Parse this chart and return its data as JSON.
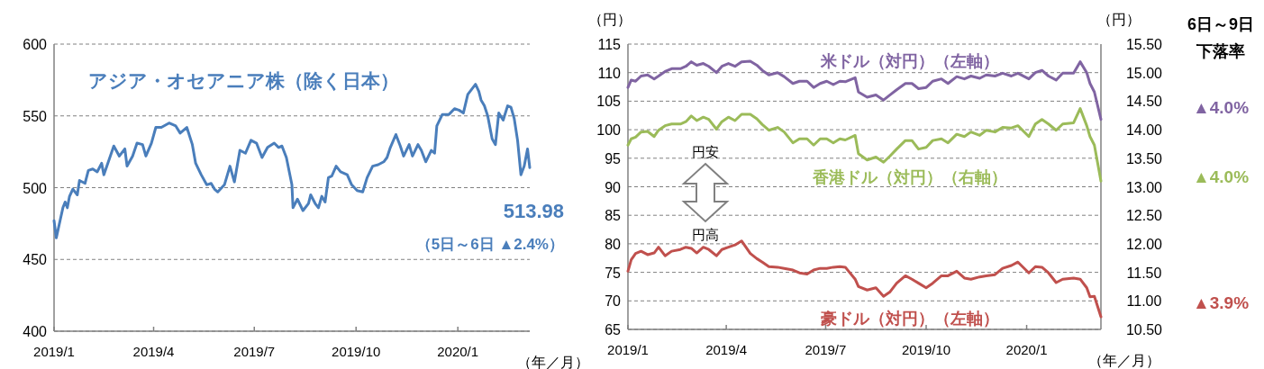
{
  "chart_data": [
    {
      "type": "line",
      "title": "アジア・オセアニア株（除く日本）",
      "xlabel": "（年／月）",
      "x": [
        "2019-01-01",
        "2019-01-03",
        "2019-01-07",
        "2019-01-09",
        "2019-01-11",
        "2019-01-13",
        "2019-01-15",
        "2019-01-18",
        "2019-01-22",
        "2019-01-24",
        "2019-01-29",
        "2019-02-01",
        "2019-02-05",
        "2019-02-09",
        "2019-02-13",
        "2019-02-15",
        "2019-02-20",
        "2019-02-24",
        "2019-03-01",
        "2019-03-06",
        "2019-03-08",
        "2019-03-13",
        "2019-03-17",
        "2019-03-22",
        "2019-03-25",
        "2019-03-30",
        "2019-04-03",
        "2019-04-08",
        "2019-04-15",
        "2019-04-21",
        "2019-04-25",
        "2019-05-01",
        "2019-05-06",
        "2019-05-09",
        "2019-05-14",
        "2019-05-19",
        "2019-05-23",
        "2019-05-26",
        "2019-05-29",
        "2019-06-04",
        "2019-06-09",
        "2019-06-13",
        "2019-06-18",
        "2019-06-23",
        "2019-06-28",
        "2019-07-03",
        "2019-07-08",
        "2019-07-13",
        "2019-07-19",
        "2019-07-23",
        "2019-07-26",
        "2019-07-30",
        "2019-08-04",
        "2019-08-05",
        "2019-08-09",
        "2019-08-14",
        "2019-08-19",
        "2019-08-21",
        "2019-08-25",
        "2019-08-28",
        "2019-08-31",
        "2019-09-03",
        "2019-09-06",
        "2019-09-09",
        "2019-09-13",
        "2019-09-17",
        "2019-09-23",
        "2019-09-27",
        "2019-10-02",
        "2019-10-07",
        "2019-10-11",
        "2019-10-16",
        "2019-10-21",
        "2019-10-26",
        "2019-10-29",
        "2019-11-01",
        "2019-11-06",
        "2019-11-10",
        "2019-11-13",
        "2019-11-18",
        "2019-11-21",
        "2019-11-26",
        "2019-11-29",
        "2019-12-03",
        "2019-12-08",
        "2019-12-11",
        "2019-12-13",
        "2019-12-18",
        "2019-12-24",
        "2019-12-29",
        "2020-01-02",
        "2020-01-06",
        "2020-01-10",
        "2020-01-17",
        "2020-01-20",
        "2020-01-22",
        "2020-01-25",
        "2020-01-28",
        "2020-02-01",
        "2020-02-04",
        "2020-02-07",
        "2020-02-11",
        "2020-02-15",
        "2020-02-18",
        "2020-02-21",
        "2020-02-24",
        "2020-02-27",
        "2020-03-01",
        "2020-03-04",
        "2020-03-06"
      ],
      "series": [
        {
          "color": "#4a7ebb",
          "values": [
            477,
            465,
            479,
            486,
            490,
            486,
            494,
            499,
            495,
            505,
            503,
            512,
            513,
            511,
            517,
            509,
            520,
            529,
            522,
            527,
            515,
            522,
            531,
            530,
            522,
            531,
            542,
            542,
            545,
            543,
            538,
            542,
            530,
            517,
            509,
            502,
            503,
            499,
            497,
            502,
            515,
            504,
            526,
            524,
            533,
            531,
            521,
            528,
            531,
            528,
            529,
            521,
            502,
            486,
            492,
            484,
            489,
            495,
            489,
            486,
            494,
            490,
            507,
            508,
            515,
            511,
            509,
            502,
            498,
            497,
            507,
            515,
            516,
            518,
            521,
            528,
            537,
            529,
            522,
            530,
            522,
            530,
            526,
            518,
            526,
            524,
            543,
            551,
            551,
            555,
            554,
            552,
            565,
            572,
            567,
            561,
            557,
            550,
            534,
            530,
            552,
            547,
            557,
            556,
            548,
            533,
            509,
            515,
            527,
            513.98
          ],
          "value_labels": [
            null,
            null,
            null,
            null,
            null,
            null,
            null,
            null,
            null,
            null,
            null,
            null,
            null,
            null,
            null,
            null,
            null,
            null,
            null,
            null,
            null,
            null,
            null,
            null,
            null,
            null,
            null,
            null,
            null,
            null,
            null,
            null,
            null,
            null,
            null,
            null,
            null,
            null,
            null,
            null,
            null,
            null,
            null,
            null,
            null,
            null,
            null,
            null,
            null,
            null,
            null,
            null,
            null,
            null,
            null,
            null,
            null,
            null,
            null,
            null,
            null,
            null,
            null,
            null,
            null,
            null,
            null,
            null,
            null,
            null,
            null,
            null,
            null,
            null,
            null,
            null,
            null,
            null,
            null,
            null,
            null,
            null,
            null,
            null,
            null,
            null,
            null,
            null,
            null,
            null,
            null,
            null,
            null,
            null,
            null,
            null,
            null,
            null,
            null,
            null,
            null,
            null,
            null,
            null,
            null,
            null,
            null,
            null,
            null,
            "513.98"
          ]
        }
      ],
      "annotations": [
        "（5日～6日 ▲2.4%）"
      ],
      "xlim": [
        "2019-01-01",
        "2020-03-06"
      ],
      "xticks": [
        {
          "value": "2019-01",
          "label": "2019/1"
        },
        {
          "value": "2019-04",
          "label": "2019/4"
        },
        {
          "value": "2019-07",
          "label": "2019/7"
        },
        {
          "value": "2019-10",
          "label": "2019/10"
        },
        {
          "value": "2020-01",
          "label": "2020/1"
        }
      ],
      "ylim": [
        400,
        600
      ],
      "yticks": [
        400,
        450,
        500,
        550,
        600
      ],
      "grid": "y"
    },
    {
      "type": "line",
      "xlabel": "（年／月）",
      "ylabel": "（円）",
      "y2label": "（円）",
      "x": [
        "2019-01-01",
        "2019-01-04",
        "2019-01-08",
        "2019-01-13",
        "2019-01-19",
        "2019-01-25",
        "2019-01-29",
        "2019-02-04",
        "2019-02-10",
        "2019-02-18",
        "2019-02-23",
        "2019-02-28",
        "2019-03-05",
        "2019-03-11",
        "2019-03-16",
        "2019-03-23",
        "2019-03-28",
        "2019-04-03",
        "2019-04-09",
        "2019-04-15",
        "2019-04-23",
        "2019-04-29",
        "2019-05-04",
        "2019-05-10",
        "2019-05-18",
        "2019-05-24",
        "2019-06-01",
        "2019-06-07",
        "2019-06-14",
        "2019-06-20",
        "2019-06-26",
        "2019-07-02",
        "2019-07-08",
        "2019-07-14",
        "2019-07-19",
        "2019-07-28",
        "2019-07-31",
        "2019-08-08",
        "2019-08-16",
        "2019-08-23",
        "2019-08-29",
        "2019-09-04",
        "2019-09-12",
        "2019-09-18",
        "2019-09-24",
        "2019-10-01",
        "2019-10-07",
        "2019-10-15",
        "2019-10-21",
        "2019-10-29",
        "2019-11-05",
        "2019-11-11",
        "2019-11-19",
        "2019-11-25",
        "2019-12-03",
        "2019-12-10",
        "2019-12-18",
        "2019-12-24",
        "2020-01-03",
        "2020-01-09",
        "2020-01-15",
        "2020-01-21",
        "2020-01-28",
        "2020-02-03",
        "2020-02-13",
        "2020-02-19",
        "2020-02-25",
        "2020-02-28",
        "2020-03-03",
        "2020-03-09"
      ],
      "series": [
        {
          "name": "米ドル（対円）（左軸）",
          "color": "#8064a2",
          "values": [
            107.4,
            108.7,
            108.5,
            109.4,
            109.6,
            108.9,
            109.4,
            110.2,
            110.7,
            110.7,
            111.1,
            111.9,
            111.3,
            111.6,
            111.1,
            110.0,
            111.1,
            111.6,
            111.1,
            111.9,
            112.0,
            111.3,
            110.4,
            109.6,
            110.0,
            109.3,
            108.1,
            108.5,
            108.5,
            107.4,
            108.1,
            108.5,
            107.9,
            108.5,
            108.4,
            109.1,
            106.6,
            105.7,
            106.1,
            105.2,
            106.1,
            107.0,
            108.1,
            108.1,
            107.2,
            107.4,
            108.5,
            108.9,
            108.1,
            109.3,
            108.9,
            109.4,
            109.0,
            109.6,
            109.4,
            109.9,
            109.4,
            109.9,
            108.9,
            110.0,
            110.4,
            109.4,
            108.7,
            109.9,
            109.9,
            111.9,
            110.0,
            108.1,
            106.6,
            101.8
          ],
          "value_labels": [
            null,
            null,
            null,
            null,
            null,
            null,
            null,
            null,
            null,
            null,
            null,
            null,
            null,
            null,
            null,
            null,
            null,
            null,
            null,
            null,
            null,
            null,
            null,
            null,
            null,
            null,
            null,
            null,
            null,
            null,
            null,
            null,
            null,
            null,
            null,
            null,
            null,
            null,
            null,
            null,
            null,
            null,
            null,
            null,
            null,
            null,
            null,
            null,
            null,
            null,
            null,
            null,
            null,
            null,
            null,
            null,
            null,
            null,
            null,
            null,
            null,
            null,
            null,
            null,
            null,
            null,
            null,
            null,
            null,
            null
          ]
        },
        {
          "name": "香港ドル（対円）（右軸）",
          "color": "#9bbb59",
          "axis": "y2",
          "values": [
            13.73,
            13.84,
            13.87,
            13.96,
            13.97,
            13.88,
            13.99,
            14.07,
            14.1,
            14.1,
            14.14,
            14.24,
            14.16,
            14.22,
            14.18,
            14.01,
            14.14,
            14.22,
            14.16,
            14.27,
            14.27,
            14.19,
            14.09,
            13.99,
            14.04,
            13.96,
            13.77,
            13.84,
            13.84,
            13.73,
            13.84,
            13.84,
            13.77,
            13.84,
            13.82,
            13.9,
            13.58,
            13.47,
            13.52,
            13.43,
            13.54,
            13.66,
            13.81,
            13.81,
            13.66,
            13.69,
            13.81,
            13.84,
            13.77,
            13.92,
            13.88,
            13.96,
            13.9,
            13.99,
            13.96,
            14.04,
            14.03,
            14.07,
            13.88,
            14.1,
            14.18,
            14.1,
            13.99,
            14.1,
            14.12,
            14.37,
            14.07,
            13.88,
            13.73,
            13.1
          ],
          "value_labels": [
            null,
            null,
            null,
            null,
            null,
            null,
            null,
            null,
            null,
            null,
            null,
            null,
            null,
            null,
            null,
            null,
            null,
            null,
            null,
            null,
            null,
            null,
            null,
            null,
            null,
            null,
            null,
            null,
            null,
            null,
            null,
            null,
            null,
            null,
            null,
            null,
            null,
            null,
            null,
            null,
            null,
            null,
            null,
            null,
            null,
            null,
            null,
            null,
            null,
            null,
            null,
            null,
            null,
            null,
            null,
            null,
            null,
            null,
            null,
            null,
            null,
            null,
            null,
            null,
            null,
            null,
            null,
            null,
            null,
            null
          ]
        },
        {
          "name": "豪ドル（対円）（左軸）",
          "color": "#c0504d",
          "values": [
            75.2,
            77.2,
            78.3,
            78.7,
            78.1,
            78.4,
            79.4,
            77.9,
            78.7,
            79.0,
            79.4,
            79.2,
            78.4,
            79.4,
            79.0,
            77.9,
            79.0,
            79.4,
            79.8,
            80.5,
            78.3,
            77.4,
            76.8,
            76.0,
            75.9,
            75.7,
            75.4,
            74.9,
            74.7,
            75.4,
            75.7,
            75.7,
            75.9,
            76.0,
            75.9,
            73.8,
            72.5,
            71.9,
            72.3,
            70.8,
            71.6,
            73.1,
            74.4,
            73.8,
            73.1,
            72.3,
            73.1,
            74.4,
            74.4,
            75.2,
            74.0,
            73.8,
            74.2,
            74.4,
            74.6,
            75.7,
            76.2,
            76.8,
            74.9,
            76.0,
            75.9,
            74.9,
            73.2,
            73.8,
            74.0,
            73.8,
            72.3,
            70.7,
            70.8,
            67.2
          ],
          "value_labels": [
            null,
            null,
            null,
            null,
            null,
            null,
            null,
            null,
            null,
            null,
            null,
            null,
            null,
            null,
            null,
            null,
            null,
            null,
            null,
            null,
            null,
            null,
            null,
            null,
            null,
            null,
            null,
            null,
            null,
            null,
            null,
            null,
            null,
            null,
            null,
            null,
            null,
            null,
            null,
            null,
            null,
            null,
            null,
            null,
            null,
            null,
            null,
            null,
            null,
            null,
            null,
            null,
            null,
            null,
            null,
            null,
            null,
            null,
            null,
            null,
            null,
            null,
            null,
            null,
            null,
            null,
            null,
            null,
            null,
            null
          ]
        }
      ],
      "annotations": [
        "円安",
        "円高",
        "6日～9日",
        "下落率",
        "▲4.0%",
        "▲4.0%",
        "▲3.9%"
      ],
      "xlim": [
        "2019-01-01",
        "2020-03-09"
      ],
      "xticks": [
        {
          "value": "2019-01",
          "label": "2019/1"
        },
        {
          "value": "2019-04",
          "label": "2019/4"
        },
        {
          "value": "2019-07",
          "label": "2019/7"
        },
        {
          "value": "2019-10",
          "label": "2019/10"
        },
        {
          "value": "2020-01",
          "label": "2020/1"
        }
      ],
      "ylim": [
        65,
        115
      ],
      "yticks": [
        65,
        70,
        75,
        80,
        85,
        90,
        95,
        100,
        105,
        110,
        115
      ],
      "y2lim": [
        10.5,
        15.5
      ],
      "y2ticks": [
        {
          "value": 10.5,
          "label": "10.50"
        },
        {
          "value": 11,
          "label": "11.00"
        },
        {
          "value": 11.5,
          "label": "11.50"
        },
        {
          "value": 12,
          "label": "12.00"
        },
        {
          "value": 12.5,
          "label": "12.50"
        },
        {
          "value": 13,
          "label": "13.00"
        },
        {
          "value": 13.5,
          "label": "13.50"
        },
        {
          "value": 14,
          "label": "14.00"
        },
        {
          "value": 14.5,
          "label": "14.50"
        },
        {
          "value": 15,
          "label": "15.00"
        },
        {
          "value": 15.5,
          "label": "15.50"
        }
      ],
      "grid": "y"
    }
  ]
}
